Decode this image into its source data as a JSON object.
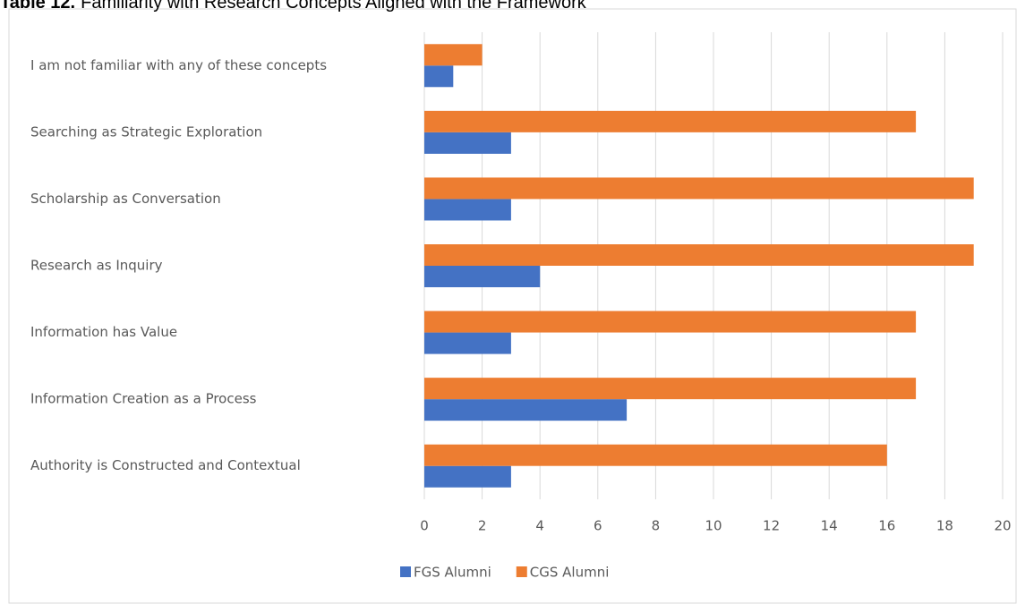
{
  "chart_data": {
    "type": "hbar",
    "title": {
      "label": "Table 12.",
      "text": "Familiarity with Research Concepts Aligned with the Framework"
    },
    "categories": [
      "I am not familiar with any of these concepts",
      "Searching as Strategic Exploration",
      "Scholarship as Conversation",
      "Research as Inquiry",
      "Information has Value",
      "Information Creation as a Process",
      "Authority is Constructed and Contextual"
    ],
    "series": [
      {
        "name": "FGS Alumni",
        "color": "#4472c4",
        "values": [
          1,
          3,
          3,
          4,
          3,
          7,
          3
        ]
      },
      {
        "name": "CGS Alumni",
        "color": "#ed7d31",
        "values": [
          2,
          17,
          19,
          19,
          17,
          17,
          16
        ]
      }
    ],
    "xlim": [
      0,
      20
    ],
    "xticks": [
      0,
      2,
      4,
      6,
      8,
      10,
      12,
      14,
      16,
      18,
      20
    ],
    "grid": true,
    "legend": "bottom"
  }
}
